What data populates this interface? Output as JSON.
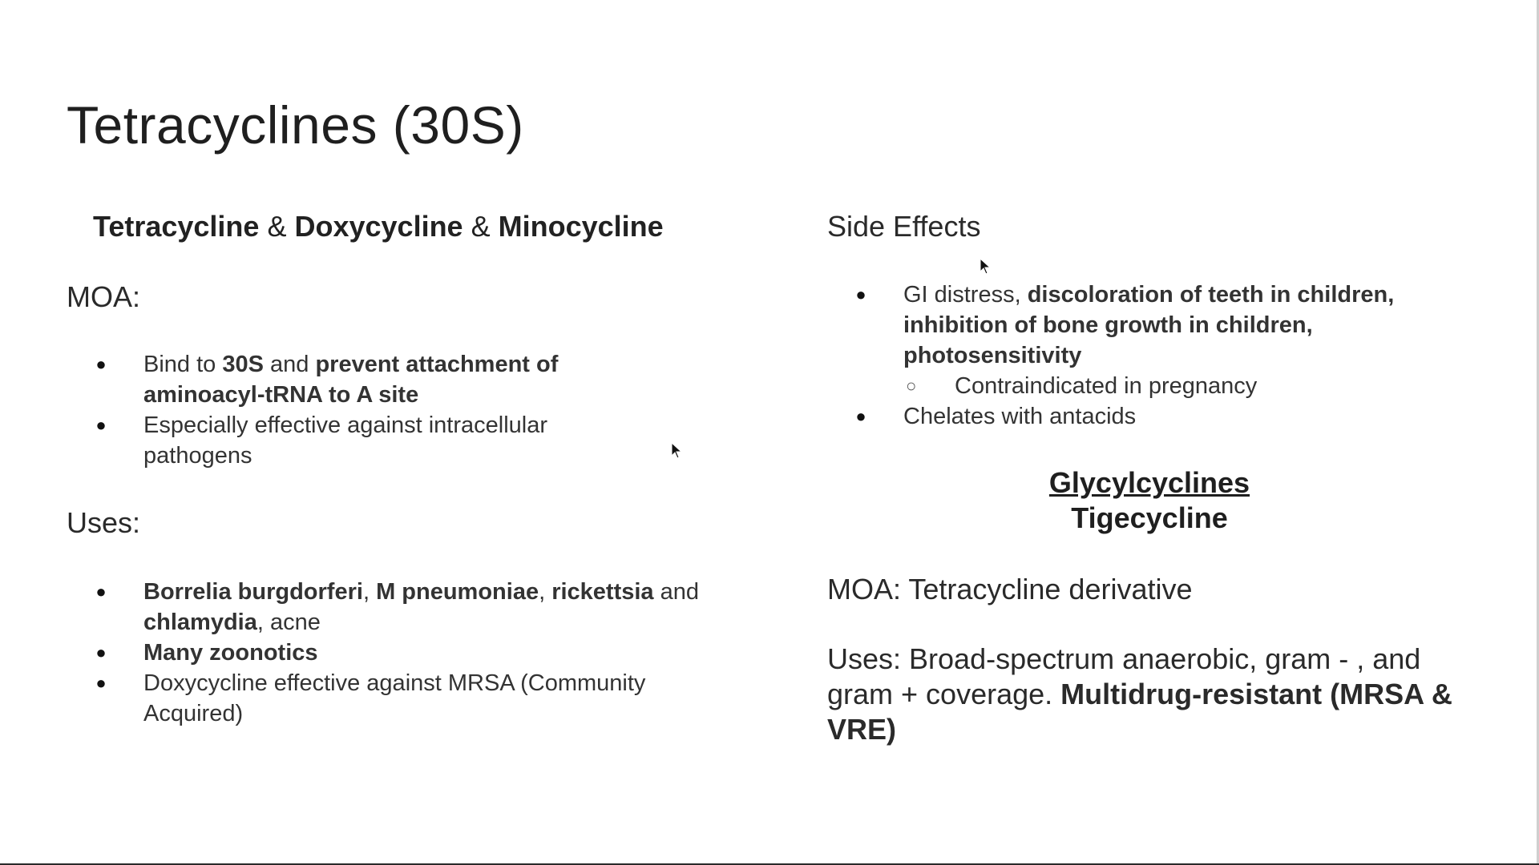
{
  "title": "Tetracyclines (30S)",
  "left": {
    "drugs": {
      "d1": "Tetracycline",
      "sep1": " & ",
      "d2": "Doxycycline",
      "sep2": " & ",
      "d3": "Minocycline"
    },
    "moa_label": "MOA:",
    "moa_items": {
      "i1_a": "Bind to ",
      "i1_b": "30S",
      "i1_c": " and ",
      "i1_d": "prevent attachment of aminoacyl-tRNA to A site",
      "i2": "Especially effective against intracellular pathogens"
    },
    "uses_label": "Uses:",
    "uses_items": {
      "i1_a": "Borrelia burgdorferi",
      "i1_b": ", ",
      "i1_c": "M pneumoniae",
      "i1_d": ", ",
      "i1_e": "rickettsia",
      "i1_f": " and  ",
      "i1_g": "chlamydia",
      "i1_h": ", acne",
      "i2": "Many zoonotics",
      "i3": "Doxycycline effective against MRSA (Community Acquired)"
    }
  },
  "right": {
    "side_effects_label": "Side Effects",
    "se_items": {
      "i1_a": "GI distress, ",
      "i1_b": "discoloration of teeth in children, inhibition of bone growth in children, photosensitivity",
      "sub1": "Contraindicated in pregnancy",
      "i2": "Chelates with antacids"
    },
    "glycyl_heading": "Glycylcyclines",
    "glycyl_drug": "Tigecycline",
    "moa_text": "MOA: Tetracycline derivative",
    "uses_text_a": "Uses:  Broad-spectrum anaerobic, gram - , and gram +  coverage. ",
    "uses_text_b": "Multidrug-resistant (MRSA & VRE)"
  },
  "bullets": {
    "dot": "●",
    "circle": "○"
  }
}
